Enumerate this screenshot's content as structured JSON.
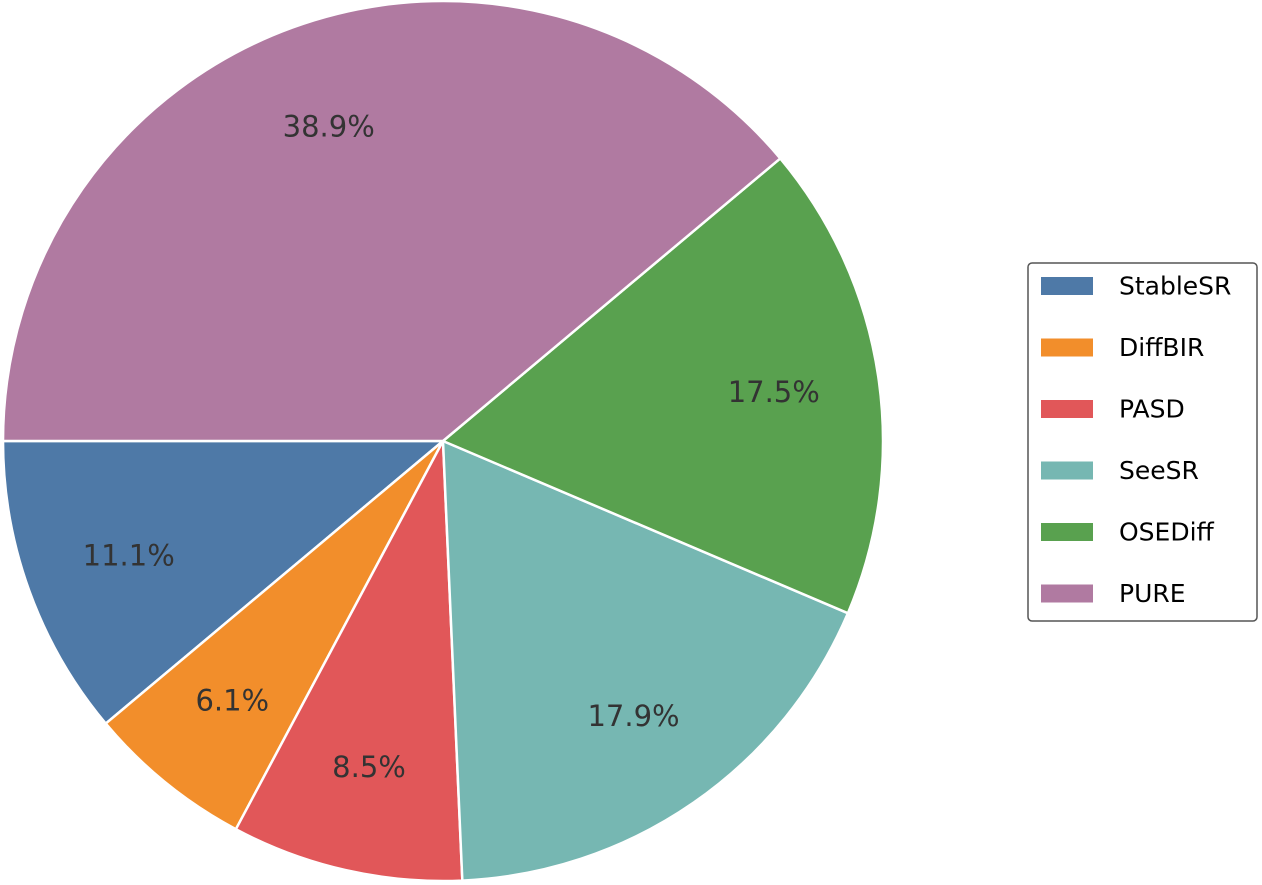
{
  "chart_data": {
    "type": "pie",
    "labels": [
      "StableSR",
      "DiffBIR",
      "PASD",
      "SeeSR",
      "OSEDiff",
      "PURE"
    ],
    "values": [
      11.1,
      6.1,
      8.5,
      17.9,
      17.5,
      38.9
    ],
    "value_labels": [
      "11.1%",
      "6.1%",
      "8.5%",
      "17.9%",
      "17.5%",
      "38.9%"
    ],
    "colors": [
      "#4e79a7",
      "#f28e2b",
      "#e15759",
      "#76b7b2",
      "#59a14f",
      "#b07aa1"
    ],
    "start_angle_deg": 180,
    "direction": "counterclockwise",
    "legend_position": "right",
    "title": ""
  }
}
